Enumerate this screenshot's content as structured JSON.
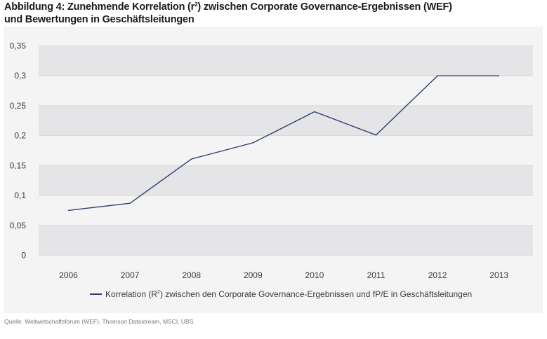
{
  "header": {
    "title_line1_pre": "Abbildung 4: Zunehmende Korrelation (r",
    "title_line1_sup": "2",
    "title_line1_post": ") zwischen Corporate Governance-Ergebnissen (WEF)",
    "title_line2": "und Bewertungen in Geschäftsleitungen"
  },
  "legend": {
    "pre": "Korrelation (R",
    "sup": "2",
    "post": ") zwischen den Corporate Governance-Ergebnissen und fP/E in Geschäftsleitungen"
  },
  "source": "Quelle: Weltwirtschaftsforum (WEF), Thomson Datastream, MSCI, UBS.",
  "colors": {
    "line": "#2e3e70",
    "panel_bg": "#f4f4f4",
    "band": "#e5e5e7",
    "band_edge": "#d9d9db"
  },
  "chart_data": {
    "type": "line",
    "title": "Abbildung 4: Zunehmende Korrelation (r²) zwischen Corporate Governance-Ergebnissen (WEF) und Bewertungen in Geschäftsleitungen",
    "xlabel": "",
    "ylabel": "",
    "categories": [
      "2006",
      "2007",
      "2008",
      "2009",
      "2010",
      "2011",
      "2012",
      "2013"
    ],
    "series": [
      {
        "name": "Korrelation (R²) zwischen den Corporate Governance-Ergebnissen und fP/E in Geschäftsleitungen",
        "values": [
          0.075,
          0.087,
          0.161,
          0.188,
          0.24,
          0.201,
          0.3,
          0.3
        ]
      }
    ],
    "ylim": [
      0,
      0.35
    ],
    "yticks": [
      0,
      0.05,
      0.1,
      0.15,
      0.2,
      0.25,
      0.3,
      0.35
    ],
    "ytick_labels": [
      "0",
      "0,05",
      "0,1",
      "0,15",
      "0,2",
      "0,25",
      "0,3",
      "0,35"
    ],
    "grid": "alternating horizontal bands",
    "legend_position": "bottom"
  }
}
